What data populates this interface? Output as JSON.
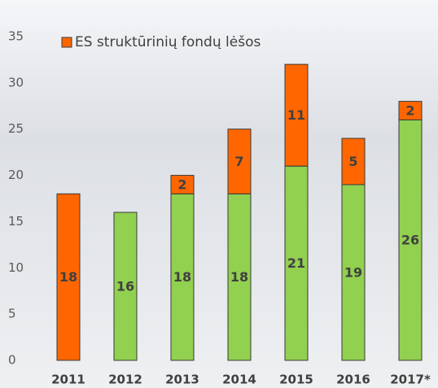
{
  "chart_data": {
    "type": "stacked_bar",
    "categories": [
      "2011",
      "2012",
      "2013",
      "2014",
      "2015",
      "2016",
      "2017*"
    ],
    "series": [
      {
        "color": "#92d050",
        "values": [
          null,
          16,
          18,
          18,
          21,
          19,
          26
        ]
      },
      {
        "name": "ES struktūrinių fondų lėšos",
        "color": "#ff6600",
        "values": [
          18,
          null,
          2,
          7,
          11,
          5,
          2
        ]
      }
    ],
    "ylim": [
      0,
      35
    ],
    "yticks": [
      0,
      5,
      10,
      15,
      20,
      25,
      30,
      35
    ],
    "grid": false
  }
}
